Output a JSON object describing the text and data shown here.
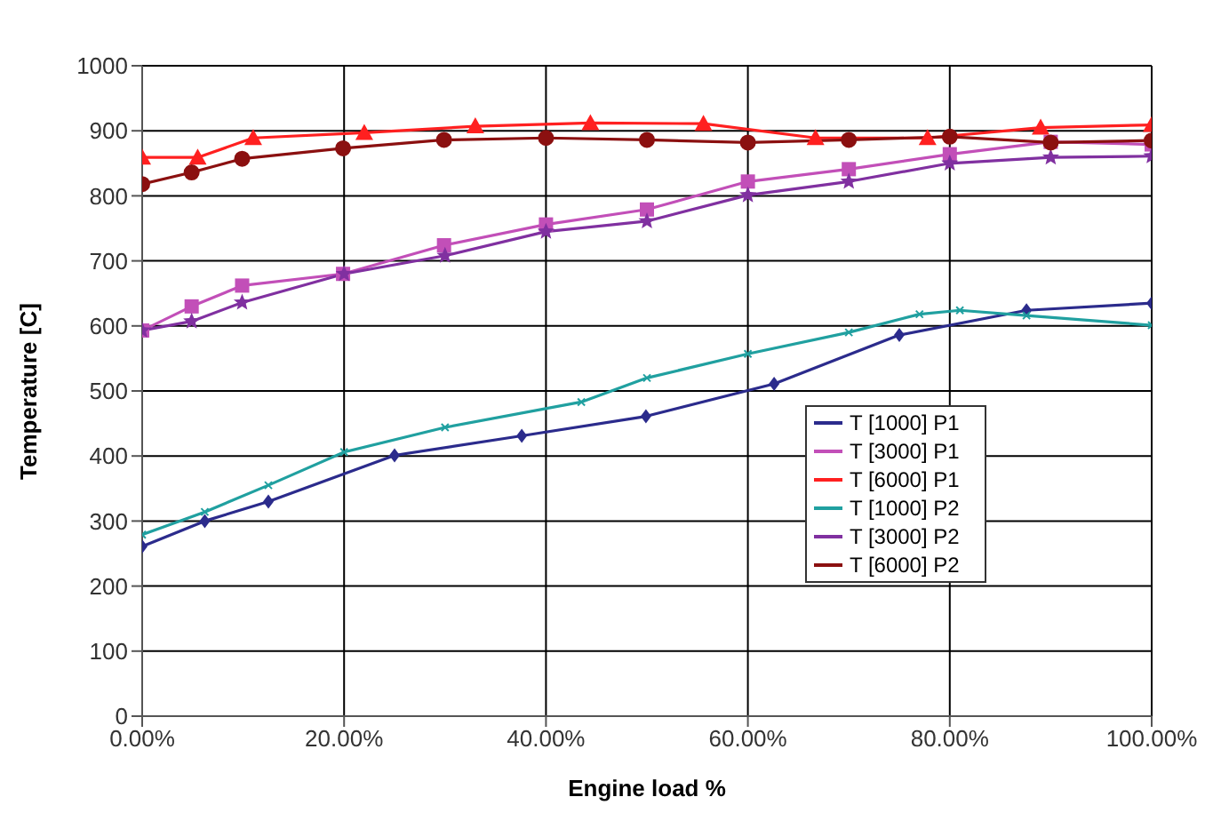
{
  "chart_data": {
    "type": "line",
    "xlabel": "Engine load %",
    "ylabel": "Temperature [C]",
    "xlim": [
      0,
      100
    ],
    "xticks": [
      {
        "value": 0,
        "label": "0.00%"
      },
      {
        "value": 20,
        "label": "20.00%"
      },
      {
        "value": 40,
        "label": "40.00%"
      },
      {
        "value": 60,
        "label": "60.00%"
      },
      {
        "value": 80,
        "label": "80.00%"
      },
      {
        "value": 100,
        "label": "100.00%"
      }
    ],
    "ylim": [
      0,
      1000
    ],
    "yticks": [
      0,
      100,
      200,
      300,
      400,
      500,
      600,
      700,
      800,
      900,
      1000
    ],
    "grid": true,
    "legend": "bottom right",
    "line_style": "solid",
    "series": [
      {
        "name": "T [1000] P1",
        "color": "#2b2b8c",
        "marker": "diamond",
        "x": [
          0,
          6.2,
          12.5,
          25,
          37.6,
          49.9,
          62.6,
          75,
          87.6,
          100
        ],
        "values": [
          261,
          300,
          330,
          401,
          431,
          461,
          511,
          586,
          624,
          635
        ]
      },
      {
        "name": "T [3000] P1",
        "color": "#c24fb8",
        "marker": "square",
        "x": [
          0,
          4.9,
          9.9,
          19.9,
          29.9,
          40,
          50,
          60,
          70,
          80,
          90,
          100
        ],
        "values": [
          593,
          630,
          662,
          680,
          724,
          756,
          779,
          822,
          841,
          864,
          883,
          879
        ]
      },
      {
        "name": "T [6000] P1",
        "color": "#ff2020",
        "marker": "triangle",
        "x": [
          0,
          5.5,
          11,
          22,
          33,
          44.4,
          55.6,
          66.7,
          77.8,
          89,
          100
        ],
        "values": [
          859,
          859,
          889,
          897,
          907,
          912,
          911,
          889,
          889,
          905,
          909
        ]
      },
      {
        "name": "T [1000] P2",
        "color": "#20a0a0",
        "marker": "cross",
        "x": [
          0,
          6.2,
          12.5,
          20,
          30,
          43.5,
          50,
          60,
          70,
          77,
          81,
          87.6,
          100
        ],
        "values": [
          279,
          314,
          355,
          406,
          444,
          483,
          520,
          557,
          590,
          618,
          624,
          616,
          601
        ]
      },
      {
        "name": "T [3000] P2",
        "color": "#8030a0",
        "marker": "star",
        "x": [
          0,
          4.9,
          9.9,
          20,
          30,
          40,
          50,
          60,
          70,
          80,
          90,
          100
        ],
        "values": [
          593,
          607,
          636,
          680,
          708,
          745,
          761,
          801,
          822,
          850,
          859,
          861
        ]
      },
      {
        "name": "T [6000] P2",
        "color": "#8b1010",
        "marker": "circle",
        "x": [
          0,
          4.9,
          9.9,
          19.9,
          29.9,
          40,
          50,
          60,
          70,
          80,
          90,
          100
        ],
        "values": [
          818,
          836,
          857,
          873,
          886,
          889,
          886,
          882,
          886,
          891,
          882,
          885
        ]
      }
    ]
  }
}
